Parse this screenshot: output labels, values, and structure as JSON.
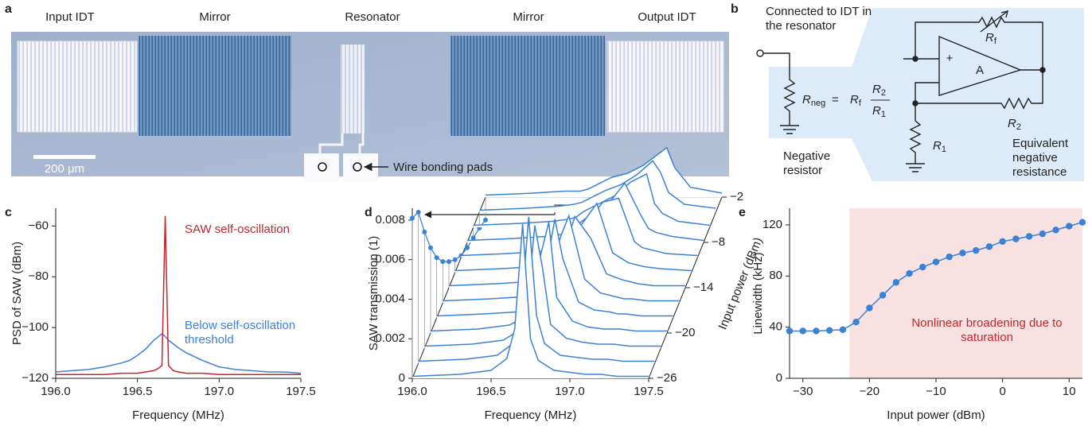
{
  "panel_labels": [
    "a",
    "b",
    "c",
    "d",
    "e"
  ],
  "micrograph": {
    "labels": [
      "Input IDT",
      "Mirror",
      "Resonator",
      "Mirror",
      "Output IDT"
    ],
    "scale_bar": "200 μm",
    "pads": "Wire bonding pads"
  },
  "circuit": {
    "connection": "Connected to IDT in the resonator",
    "negative_resistor": "Negative resistor",
    "equivalent": "Equivalent negative resistance",
    "amp": "A",
    "plus": "+",
    "rf": {
      "main": "R",
      "sub": "f"
    },
    "r2": {
      "main": "R",
      "sub": "2"
    },
    "r1": {
      "main": "R",
      "sub": "1"
    },
    "formula": {
      "lhs": "R",
      "lhs_sub": "neg",
      "eq": "=",
      "f": "R",
      "f_sub": "f",
      "num": "R",
      "num_sub": "2",
      "den": "R",
      "den_sub": "1"
    }
  },
  "chart_data": [
    {
      "type": "line",
      "xlabel": "Frequency (MHz)",
      "ylabel": "PSD of SAW (dBm)",
      "x": [
        196.0,
        196.1,
        196.2,
        196.3,
        196.4,
        196.45,
        196.5,
        196.55,
        196.6,
        196.63,
        196.65,
        196.67,
        196.69,
        196.72,
        196.75,
        196.8,
        196.9,
        197.0,
        197.1,
        197.2,
        197.3,
        197.4,
        197.5
      ],
      "series": [
        {
          "name": "Below self-oscillation threshold",
          "color": "#3b82d6",
          "values": [
            -117.5,
            -117,
            -116.5,
            -115.5,
            -114,
            -113,
            -111,
            -108.5,
            -105,
            -103.5,
            -102.5,
            -103.5,
            -105,
            -106.5,
            -108,
            -110,
            -113,
            -115.5,
            -116.5,
            -117,
            -117.5,
            -117.5,
            -118
          ]
        },
        {
          "name": "SAW self-oscillation",
          "color": "#c0272d",
          "values": [
            -118.5,
            -118.5,
            -118.5,
            -118.5,
            -118,
            -118,
            -118,
            -117.5,
            -117,
            -116,
            -115,
            -56,
            -115,
            -117,
            -117.5,
            -118,
            -118,
            -118.5,
            -118.5,
            -118.5,
            -118.5,
            -118.5,
            -118.5
          ]
        }
      ],
      "xlim": [
        196.0,
        197.5
      ],
      "xticks": [
        {
          "value": 196,
          "label": "196.0"
        },
        {
          "value": 196.5,
          "label": "196.5"
        },
        {
          "value": 197,
          "label": "197.0"
        },
        {
          "value": 197.5,
          "label": "197.5"
        }
      ],
      "ylim": [
        -120,
        -53
      ],
      "yticks": [
        {
          "value": -120,
          "label": "−120"
        },
        {
          "value": -100,
          "label": "−100"
        },
        {
          "value": -80,
          "label": "−80"
        },
        {
          "value": -60,
          "label": "−60"
        }
      ]
    },
    {
      "type": "waterfall",
      "xlabel": "Frequency (MHz)",
      "ylabel": "SAW transmission (1)",
      "zlabel": "Input power (dBm)",
      "color": "#3b82d6",
      "x": [
        196.0,
        196.3,
        196.5,
        196.6,
        196.65,
        196.7,
        196.75,
        196.8,
        196.9,
        197.0,
        197.1,
        197.15,
        197.2,
        197.3,
        197.5
      ],
      "series": [
        {
          "z": -26,
          "values": [
            0.0001,
            0.0002,
            0.0004,
            0.001,
            0.0025,
            0.0078,
            0.002,
            0.0009,
            0.0004,
            0.0003,
            0.0002,
            0.0002,
            0.0002,
            0.0001,
            0.0001
          ]
        },
        {
          "z": -24,
          "values": [
            0.0001,
            0.0002,
            0.0004,
            0.001,
            0.0024,
            0.0074,
            0.0024,
            0.001,
            0.0004,
            0.0003,
            0.0002,
            0.0002,
            0.0002,
            0.0001,
            0.0001
          ]
        },
        {
          "z": -22,
          "values": [
            0.0001,
            0.0002,
            0.0004,
            0.0009,
            0.002,
            0.0062,
            0.004,
            0.0012,
            0.0005,
            0.0003,
            0.0002,
            0.0002,
            0.0002,
            0.0001,
            0.0001
          ]
        },
        {
          "z": -20,
          "values": [
            0.0001,
            0.0002,
            0.0004,
            0.0008,
            0.0016,
            0.004,
            0.0056,
            0.0018,
            0.0006,
            0.0003,
            0.0002,
            0.0002,
            0.0002,
            0.0001,
            0.0001
          ]
        },
        {
          "z": -18,
          "values": [
            0.0001,
            0.0002,
            0.0003,
            0.0007,
            0.0013,
            0.0028,
            0.005,
            0.003,
            0.0008,
            0.0004,
            0.0003,
            0.0002,
            0.0002,
            0.0001,
            0.0001
          ]
        },
        {
          "z": -16,
          "values": [
            0.0001,
            0.0002,
            0.0003,
            0.0006,
            0.0011,
            0.0021,
            0.0034,
            0.0044,
            0.0012,
            0.0005,
            0.0003,
            0.0002,
            0.0002,
            0.0001,
            0.0001
          ]
        },
        {
          "z": -14,
          "values": [
            0.0001,
            0.0002,
            0.0003,
            0.0005,
            0.0009,
            0.0016,
            0.0024,
            0.0036,
            0.0025,
            0.0007,
            0.0004,
            0.0003,
            0.0002,
            0.0001,
            0.0001
          ]
        },
        {
          "z": -12,
          "values": [
            0.0001,
            0.0002,
            0.0003,
            0.0005,
            0.0008,
            0.0013,
            0.0018,
            0.0024,
            0.0035,
            0.001,
            0.0005,
            0.0004,
            0.0003,
            0.0002,
            0.0001
          ]
        },
        {
          "z": -10,
          "values": [
            0.0001,
            0.0002,
            0.0003,
            0.0004,
            0.0007,
            0.0011,
            0.0014,
            0.0018,
            0.0028,
            0.003,
            0.0008,
            0.0005,
            0.0004,
            0.0002,
            0.0001
          ]
        },
        {
          "z": -8,
          "values": [
            0.0001,
            0.0002,
            0.0003,
            0.0004,
            0.0006,
            0.0009,
            0.0012,
            0.0015,
            0.002,
            0.003,
            0.0014,
            0.0007,
            0.0005,
            0.0003,
            0.0001
          ]
        },
        {
          "z": -6,
          "values": [
            0.0001,
            0.0002,
            0.0003,
            0.0004,
            0.0005,
            0.0008,
            0.001,
            0.0012,
            0.0016,
            0.0023,
            0.0027,
            0.0012,
            0.0007,
            0.0003,
            0.0001
          ]
        },
        {
          "z": -4,
          "values": [
            0.0001,
            0.0002,
            0.0003,
            0.0004,
            0.0005,
            0.0007,
            0.0009,
            0.0011,
            0.0014,
            0.0019,
            0.0026,
            0.002,
            0.001,
            0.0004,
            0.0002
          ]
        },
        {
          "z": -2,
          "values": [
            0.0001,
            0.0002,
            0.0003,
            0.0003,
            0.0004,
            0.0006,
            0.0008,
            0.001,
            0.0012,
            0.0016,
            0.0022,
            0.0025,
            0.0015,
            0.0005,
            0.0002
          ]
        }
      ],
      "projection": {
        "z": [
          -26,
          -24,
          -22,
          -20,
          -18,
          -16,
          -14,
          -12,
          -10,
          -8,
          -6,
          -4,
          -2
        ],
        "values": [
          0.0081,
          0.0084,
          0.0074,
          0.0066,
          0.0061,
          0.0059,
          0.0059,
          0.006,
          0.0062,
          0.0066,
          0.0071,
          0.0076,
          0.008
        ]
      },
      "xlim": [
        196.0,
        197.5
      ],
      "xticks": [
        {
          "value": 196,
          "label": "196.0"
        },
        {
          "value": 196.5,
          "label": "196.5"
        },
        {
          "value": 197,
          "label": "197.0"
        },
        {
          "value": 197.5,
          "label": "197.5"
        }
      ],
      "ylim": [
        0,
        0.0086
      ],
      "yticks": [
        0,
        0.002,
        0.004,
        0.006,
        0.008
      ],
      "zlim": [
        -26,
        -2
      ],
      "zticks": [
        {
          "value": -26,
          "label": "−26"
        },
        {
          "value": -20,
          "label": "−20"
        },
        {
          "value": -14,
          "label": "−14"
        },
        {
          "value": -8,
          "label": "−8"
        },
        {
          "value": -2,
          "label": "−2"
        }
      ]
    },
    {
      "type": "line",
      "markers": true,
      "xlabel": "Input power (dBm)",
      "ylabel": "Linewidth (kHz)",
      "annotation": "Nonlinear broadening due to saturation",
      "highlight": {
        "xrange": [
          -23,
          12
        ],
        "color": "#f7e1e1"
      },
      "x": [
        -32,
        -30,
        -28,
        -26,
        -24,
        -22,
        -20,
        -18,
        -16,
        -14,
        -12,
        -10,
        -8,
        -6,
        -4,
        -2,
        0,
        2,
        4,
        6,
        8,
        10,
        12
      ],
      "series": [
        {
          "color": "#3b82d6",
          "values": [
            37,
            37,
            37,
            37.5,
            38,
            44,
            55,
            65,
            75,
            82,
            87,
            91,
            95,
            98,
            100,
            103,
            107,
            109,
            111,
            113,
            116,
            119,
            122
          ]
        }
      ],
      "xlim": [
        -32,
        12
      ],
      "xticks": [
        {
          "value": -30,
          "label": "−30"
        },
        {
          "value": -20,
          "label": "−20"
        },
        {
          "value": -10,
          "label": "−10"
        },
        0,
        10
      ],
      "ylim": [
        0,
        133
      ],
      "yticks": [
        0,
        40,
        80,
        120
      ]
    }
  ]
}
